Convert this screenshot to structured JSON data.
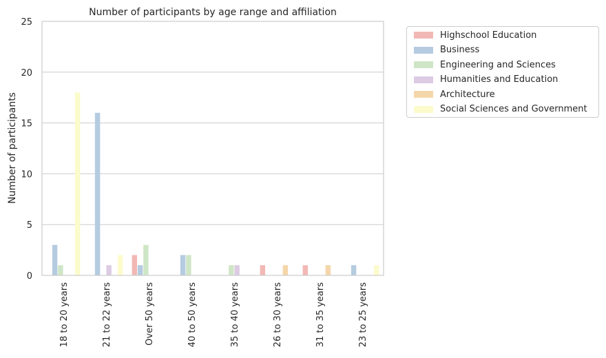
{
  "chart_data": {
    "type": "bar",
    "title": "Number of participants by age range and affiliation",
    "xlabel": "",
    "ylabel": "Number of participants",
    "ylim": [
      0,
      25
    ],
    "yticks": [
      0,
      5,
      10,
      15,
      20,
      25
    ],
    "grid": "horizontal",
    "legend_position": "outside-top-right",
    "categories": [
      "18 to 20 years",
      "21 to 22 years",
      "Over 50 years",
      "40 to 50 years",
      "35 to 40 years",
      "26 to 30 years",
      "31 to 35 years",
      "23 to 25 years"
    ],
    "series": [
      {
        "name": "Highschool Education",
        "color": "#f2b8b5",
        "values": [
          0,
          0,
          2,
          0,
          0,
          1,
          1,
          0
        ]
      },
      {
        "name": "Business",
        "color": "#b5cbe0",
        "values": [
          3,
          16,
          1,
          2,
          0,
          0,
          0,
          1
        ]
      },
      {
        "name": "Engineering and Sciences",
        "color": "#cfe6c6",
        "values": [
          1,
          0,
          3,
          2,
          1,
          0,
          0,
          0
        ]
      },
      {
        "name": "Humanities and Education",
        "color": "#dccbe3",
        "values": [
          0,
          1,
          0,
          0,
          1,
          0,
          0,
          0
        ]
      },
      {
        "name": "Architecture",
        "color": "#f5d6aa",
        "values": [
          0,
          0,
          0,
          0,
          0,
          1,
          1,
          0
        ]
      },
      {
        "name": "Social Sciences and Government",
        "color": "#fcfbcc",
        "values": [
          18,
          2,
          0,
          0,
          0,
          0,
          0,
          1
        ]
      }
    ]
  }
}
